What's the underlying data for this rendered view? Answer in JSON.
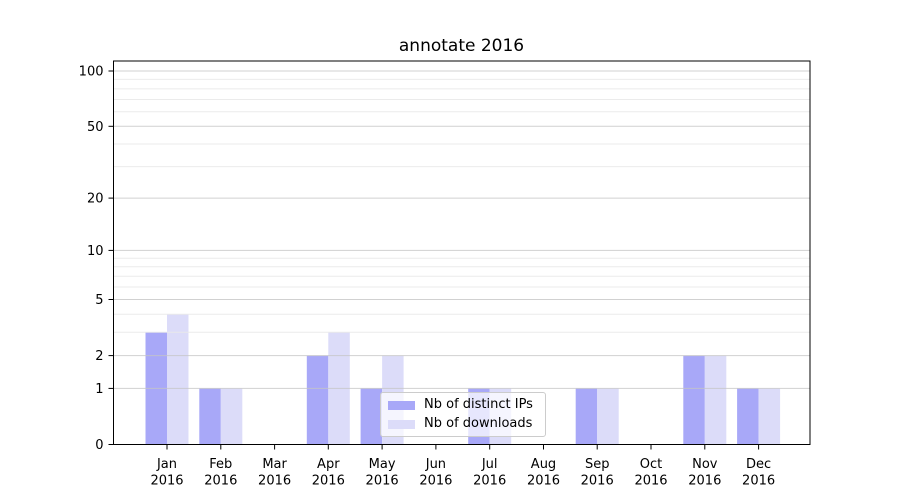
{
  "chart_data": {
    "type": "bar",
    "title": "annotate 2016",
    "categories": [
      "Jan 2016",
      "Feb 2016",
      "Mar 2016",
      "Apr 2016",
      "May 2016",
      "Jun 2016",
      "Jul 2016",
      "Aug 2016",
      "Sep 2016",
      "Oct 2016",
      "Nov 2016",
      "Dec 2016"
    ],
    "series": [
      {
        "name": "Nb of distinct IPs",
        "color": "#a8a8f8",
        "values": [
          3,
          1,
          0,
          2,
          1,
          0,
          1,
          0,
          1,
          0,
          2,
          1
        ]
      },
      {
        "name": "Nb of downloads",
        "color": "#dcdcf9",
        "values": [
          4,
          1,
          0,
          3,
          2,
          0,
          1,
          0,
          1,
          0,
          2,
          1
        ]
      }
    ],
    "yscale": "log1p",
    "yticks": [
      0,
      1,
      2,
      5,
      10,
      20,
      50,
      100
    ],
    "minor_gridlines": [
      3,
      4,
      6,
      7,
      8,
      9,
      30,
      40,
      60,
      70,
      80,
      90
    ],
    "ylim": [
      0,
      110
    ],
    "grid": true,
    "legend_position": "inside lower center",
    "colors": {
      "grid_major": "#c6c6c6",
      "grid_minor": "#e9e9e9",
      "axis": "#000000",
      "text": "#000000"
    }
  }
}
